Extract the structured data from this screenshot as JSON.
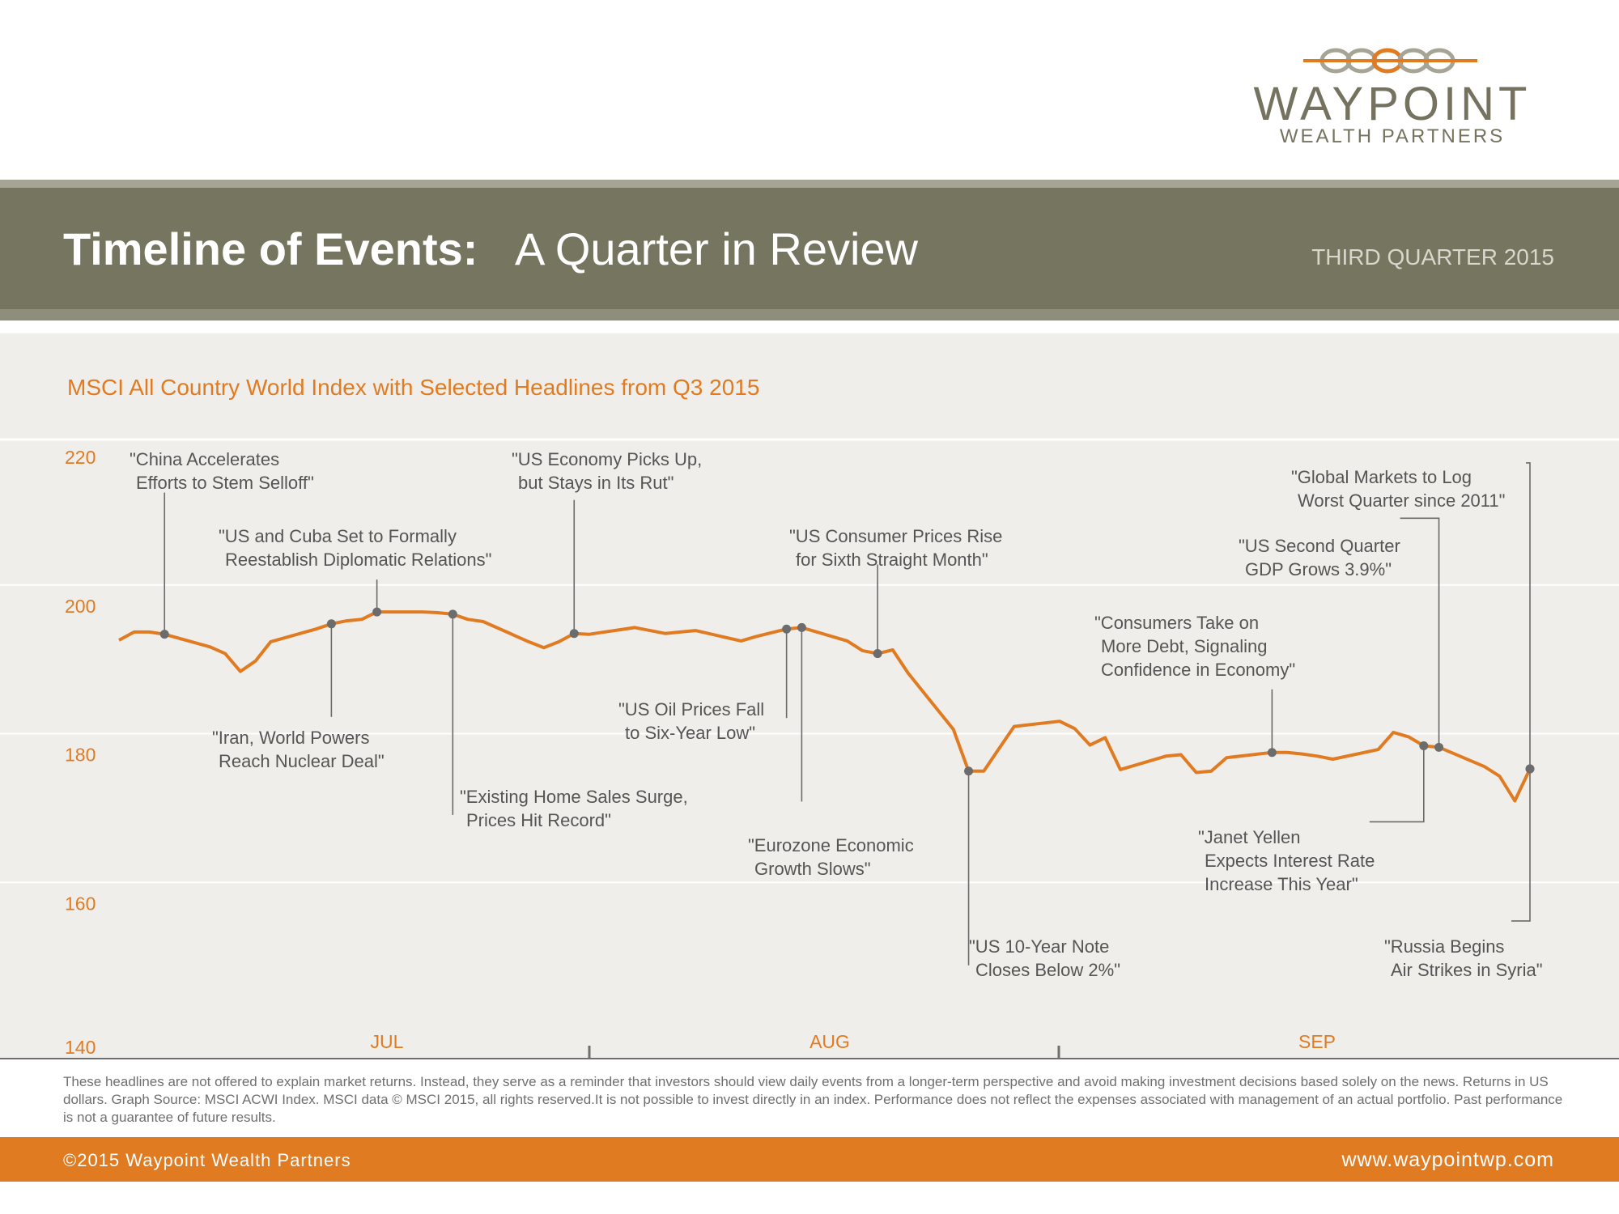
{
  "logo": {
    "name": "WAYPOINT",
    "tagline": "WEALTH PARTNERS"
  },
  "header": {
    "title_bold": "Timeline of Events:",
    "title_light": "A Quarter in Review",
    "quarter": "THIRD QUARTER 2015"
  },
  "chart_title": "MSCI All Country World Index with Selected Headlines from Q3 2015",
  "colors": {
    "accent": "#e07b22",
    "banner": "#767560",
    "panel": "#efeeeb",
    "marker": "#6c6c6c"
  },
  "chart_data": {
    "type": "line",
    "title": "MSCI All Country World Index with Selected Headlines from Q3 2015",
    "xlabel": "",
    "ylabel": "",
    "ylim": [
      140,
      220
    ],
    "yticks": [
      220,
      200,
      180,
      160,
      140
    ],
    "xtick_labels": [
      "JUL",
      "AUG",
      "SEP"
    ],
    "grid": true,
    "series": [
      {
        "name": "",
        "x": [
          "2015-06-30",
          "2015-07-01",
          "2015-07-02",
          "2015-07-03",
          "2015-07-06",
          "2015-07-07",
          "2015-07-08",
          "2015-07-09",
          "2015-07-10",
          "2015-07-13",
          "2015-07-14",
          "2015-07-15",
          "2015-07-16",
          "2015-07-17",
          "2015-07-20",
          "2015-07-21",
          "2015-07-22",
          "2015-07-23",
          "2015-07-24",
          "2015-07-27",
          "2015-07-28",
          "2015-07-29",
          "2015-07-30",
          "2015-07-31",
          "2015-08-03",
          "2015-08-04",
          "2015-08-05",
          "2015-08-06",
          "2015-08-07",
          "2015-08-10",
          "2015-08-11",
          "2015-08-12",
          "2015-08-13",
          "2015-08-14",
          "2015-08-17",
          "2015-08-18",
          "2015-08-19",
          "2015-08-20",
          "2015-08-21",
          "2015-08-24",
          "2015-08-25",
          "2015-08-26",
          "2015-08-27",
          "2015-08-28",
          "2015-08-31",
          "2015-09-01",
          "2015-09-02",
          "2015-09-03",
          "2015-09-04",
          "2015-09-07",
          "2015-09-08",
          "2015-09-09",
          "2015-09-10",
          "2015-09-11",
          "2015-09-14",
          "2015-09-15",
          "2015-09-16",
          "2015-09-17",
          "2015-09-18",
          "2015-09-21",
          "2015-09-22",
          "2015-09-23",
          "2015-09-24",
          "2015-09-25",
          "2015-09-28",
          "2015-09-29",
          "2015-09-30",
          "2015-10-01"
        ],
        "values": [
          195.4,
          196.5,
          196.5,
          196.2,
          194.5,
          193.6,
          191.2,
          192.6,
          195.2,
          196.9,
          197.6,
          198.0,
          198.2,
          199.2,
          199.2,
          199.1,
          198.9,
          198.2,
          197.9,
          195.2,
          194.4,
          195.2,
          196.3,
          196.2,
          197.1,
          196.7,
          196.3,
          196.5,
          196.7,
          195.3,
          195.9,
          196.4,
          196.9,
          197.1,
          195.3,
          194.0,
          193.6,
          194.1,
          191.0,
          183.4,
          177.8,
          177.8,
          180.8,
          183.8,
          184.5,
          183.5,
          181.3,
          182.3,
          178.0,
          179.8,
          180.0,
          177.6,
          177.8,
          179.6,
          180.3,
          180.3,
          180.1,
          179.8,
          179.4,
          180.7,
          183.0,
          182.4,
          181.2,
          181.0,
          178.4,
          177.1,
          173.8,
          178.1
        ]
      }
    ],
    "annotations": [
      {
        "date": "2015-07-03",
        "value": 196.2,
        "text": [
          "\"China Accelerates",
          "Efforts to Stem Selloff\""
        ]
      },
      {
        "date": "2015-07-14",
        "value": 197.6,
        "text": [
          "\"Iran, World Powers",
          "Reach Nuclear Deal\""
        ]
      },
      {
        "date": "2015-07-17",
        "value": 199.2,
        "text": [
          "\"US and Cuba Set to Formally",
          "Reestablish Diplomatic Relations\""
        ]
      },
      {
        "date": "2015-07-22",
        "value": 198.9,
        "text": [
          "\"Existing Home Sales Surge,",
          "Prices Hit Record\""
        ]
      },
      {
        "date": "2015-07-30",
        "value": 196.3,
        "text": [
          "\"US Economy Picks Up,",
          "but Stays in Its Rut\""
        ]
      },
      {
        "date": "2015-08-13",
        "value": 196.9,
        "text": [
          "\"US Oil Prices Fall",
          "to Six-Year Low\""
        ]
      },
      {
        "date": "2015-08-14",
        "value": 197.1,
        "text": [
          "\"Eurozone Economic",
          "Growth Slows\""
        ]
      },
      {
        "date": "2015-08-19",
        "value": 193.6,
        "text": [
          "\"US Consumer Prices Rise",
          "for Sixth Straight Month\""
        ]
      },
      {
        "date": "2015-08-25",
        "value": 177.8,
        "text": [
          "\"US 10-Year Note",
          "Closes Below 2%\""
        ]
      },
      {
        "date": "2015-09-14",
        "value": 180.3,
        "text": [
          "\"Consumers Take on",
          "More Debt, Signaling",
          "Confidence in Economy\""
        ]
      },
      {
        "date": "2015-09-24",
        "value": 181.2,
        "text": [
          "\"Janet Yellen",
          "Expects Interest Rate",
          "Increase This Year\""
        ]
      },
      {
        "date": "2015-09-25",
        "value": 181.0,
        "text": [
          "\"US Second Quarter",
          "GDP Grows 3.9%\""
        ]
      },
      {
        "date": "2015-10-01",
        "value": 178.1,
        "text": [
          "\"Russia Begins",
          "Air Strikes in Syria\""
        ]
      },
      {
        "date": "2015-10-01",
        "value": 178.1,
        "text": [
          "\"Global Markets to Log",
          "Worst Quarter since 2011\""
        ]
      }
    ]
  },
  "footnote": "These headlines are not offered to explain market returns. Instead, they serve as a reminder that investors should view daily events from a longer-term perspective and avoid making investment decisions based solely on the news. Returns in US dollars. Graph Source: MSCI ACWI Index. MSCI data © MSCI 2015, all rights reserved.It is not possible to invest directly in an index. Performance does not reflect the expenses associated with management of an actual portfolio. Past performance is not a guarantee of future results.",
  "footer": {
    "copyright": "©2015 Waypoint Wealth Partners",
    "website": "www.waypointwp.com"
  }
}
